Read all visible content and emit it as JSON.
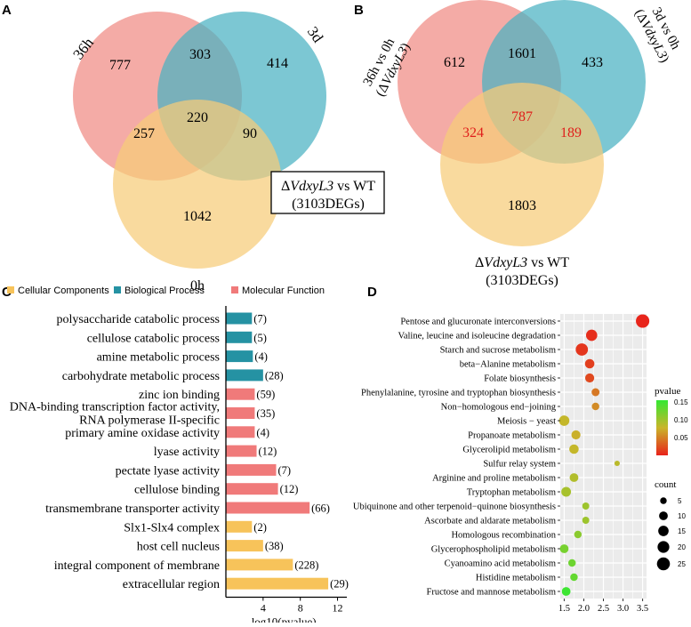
{
  "panelA": {
    "letter": "A",
    "set_labels": {
      "top_left": "36h",
      "top_right": "3d",
      "bottom": "0h"
    },
    "counts": {
      "only_36h": "777",
      "only_3d": "414",
      "only_0h": "1042",
      "h36_3d": "303",
      "h36_0h": "257",
      "d3_0h": "90",
      "all": "220"
    },
    "box_line1_delta": "Δ",
    "box_line1_gene": "VdxyL3",
    "box_line1_rest": " vs WT",
    "box_line2": "(3103DEGs)"
  },
  "panelB": {
    "letter": "B",
    "left_label_line1": "36h vs 0h",
    "left_label_line2_delta": "(Δ",
    "left_label_line2_gene": "VdxyL3",
    "left_label_line2_close": ")",
    "right_label_line1": "3d vs 0h",
    "right_label_line2_delta": "(Δ",
    "right_label_line2_gene": "VdxyL3",
    "right_label_line2_close": ")",
    "counts": {
      "only_left": "612",
      "only_right": "433",
      "only_bottom": "1803",
      "left_right": "1601",
      "left_bottom": "324",
      "right_bottom": "189",
      "all": "787"
    },
    "bottom_label_line1_delta": "Δ",
    "bottom_label_line1_gene": "VdxyL3",
    "bottom_label_line1_rest": " vs WT",
    "bottom_label_line2": "(3103DEGs)"
  },
  "colors": {
    "pink": "#F08A84",
    "teal": "#4AB2C2",
    "yellow": "#F7CC78",
    "red_text": "#E0201C",
    "bar_cc": "#F7C35A",
    "bar_bp": "#2592A3",
    "bar_mf": "#F07A7A"
  },
  "chart_data": [
    {
      "type": "bar",
      "orientation": "horizontal",
      "panel": "C",
      "legend": [
        {
          "name": "Cellular Components",
          "color": "#F7C35A"
        },
        {
          "name": "Biological Process",
          "color": "#2592A3"
        },
        {
          "name": "Molecular Function",
          "color": "#F07A7A"
        }
      ],
      "categories": [
        {
          "label": [
            "polysaccharide catabolic process"
          ],
          "group": "bp",
          "value": 2.8,
          "count": "(7)"
        },
        {
          "label": [
            "cellulose catabolic process"
          ],
          "group": "bp",
          "value": 2.8,
          "count": "(5)"
        },
        {
          "label": [
            "amine metabolic process"
          ],
          "group": "bp",
          "value": 2.9,
          "count": "(4)"
        },
        {
          "label": [
            "carbohydrate metabolic process"
          ],
          "group": "bp",
          "value": 4.0,
          "count": "(28)"
        },
        {
          "label": [
            "zinc ion binding"
          ],
          "group": "mf",
          "value": 3.1,
          "count": "(59)"
        },
        {
          "label": [
            "DNA-binding transcription factor activity,",
            "RNA polymerase II-specific"
          ],
          "group": "mf",
          "value": 3.1,
          "count": "(35)"
        },
        {
          "label": [
            "primary amine oxidase activity"
          ],
          "group": "mf",
          "value": 3.1,
          "count": "(4)"
        },
        {
          "label": [
            "lyase activity"
          ],
          "group": "mf",
          "value": 3.3,
          "count": "(12)"
        },
        {
          "label": [
            "pectate lyase activity"
          ],
          "group": "mf",
          "value": 5.4,
          "count": "(7)"
        },
        {
          "label": [
            "cellulose binding"
          ],
          "group": "mf",
          "value": 5.6,
          "count": "(12)"
        },
        {
          "label": [
            "transmembrane transporter activity"
          ],
          "group": "mf",
          "value": 9.0,
          "count": "(66)"
        },
        {
          "label": [
            "Slx1-Slx4 complex"
          ],
          "group": "cc",
          "value": 2.8,
          "count": "(2)"
        },
        {
          "label": [
            "host cell nucleus"
          ],
          "group": "cc",
          "value": 4.0,
          "count": "(38)"
        },
        {
          "label": [
            "integral component of membrane"
          ],
          "group": "cc",
          "value": 7.2,
          "count": "(228)"
        },
        {
          "label": [
            "extracellular region"
          ],
          "group": "cc",
          "value": 11.0,
          "count": "(29)"
        }
      ],
      "xticks": [
        "4",
        "8",
        "12"
      ],
      "xtick_values": [
        4,
        8,
        12
      ],
      "xlim": [
        0,
        13
      ],
      "xlabel": "-log10(pvalue)"
    },
    {
      "type": "scatter",
      "panel": "D",
      "categories": [
        "Pentose and glucuronate interconversions",
        "Valine, leucine and isoleucine degradation",
        "Starch and sucrose metabolism",
        "beta−Alanine metabolism",
        "Folate biosynthesis",
        "Phenylalanine, tyrosine and tryptophan biosynthesis",
        "Non−homologous end−joining",
        "Meiosis − yeast",
        "Propanoate metabolism",
        "Glycerolipid metabolism",
        "Sulfur relay system",
        "Arginine and proline metabolism",
        "Tryptophan metabolism",
        "Ubiquinone and other terpenoid−quinone biosynthesis",
        "Ascorbate and aldarate metabolism",
        "Homologous recombination",
        "Glycerophospholipid metabolism",
        "Cyanoamino acid metabolism",
        "Histidine metabolism",
        "Fructose and mannose metabolism"
      ],
      "points": [
        {
          "x": 3.5,
          "count": 27,
          "pvalue": 0.001
        },
        {
          "x": 2.2,
          "count": 18,
          "pvalue": 0.006
        },
        {
          "x": 1.95,
          "count": 22,
          "pvalue": 0.01
        },
        {
          "x": 2.15,
          "count": 12,
          "pvalue": 0.015
        },
        {
          "x": 2.15,
          "count": 11,
          "pvalue": 0.02
        },
        {
          "x": 2.3,
          "count": 8,
          "pvalue": 0.045
        },
        {
          "x": 2.3,
          "count": 7,
          "pvalue": 0.055
        },
        {
          "x": 1.5,
          "count": 15,
          "pvalue": 0.08
        },
        {
          "x": 1.8,
          "count": 11,
          "pvalue": 0.075
        },
        {
          "x": 1.75,
          "count": 12,
          "pvalue": 0.08
        },
        {
          "x": 2.85,
          "count": 3,
          "pvalue": 0.085
        },
        {
          "x": 1.75,
          "count": 10,
          "pvalue": 0.09
        },
        {
          "x": 1.55,
          "count": 13,
          "pvalue": 0.095
        },
        {
          "x": 2.05,
          "count": 6,
          "pvalue": 0.1
        },
        {
          "x": 2.05,
          "count": 6,
          "pvalue": 0.1
        },
        {
          "x": 1.85,
          "count": 7,
          "pvalue": 0.11
        },
        {
          "x": 1.5,
          "count": 10,
          "pvalue": 0.12
        },
        {
          "x": 1.7,
          "count": 7,
          "pvalue": 0.125
        },
        {
          "x": 1.75,
          "count": 7,
          "pvalue": 0.13
        },
        {
          "x": 1.55,
          "count": 10,
          "pvalue": 0.15
        }
      ],
      "xticks": [
        "1.5",
        "2.0",
        "2.5",
        "3.0",
        "3.5"
      ],
      "xtick_values": [
        1.5,
        2.0,
        2.5,
        3.0,
        3.5
      ],
      "xlim": [
        1.4,
        3.6
      ],
      "color_legend": {
        "title": "pvalue",
        "ticks": [
          "0.15",
          "0.10",
          "0.05"
        ],
        "tick_values": [
          0.15,
          0.1,
          0.05
        ],
        "range": [
          0.0,
          0.155
        ],
        "low_color": "#E8231B",
        "mid_color": "#C9B52A",
        "high_color": "#33E833"
      },
      "size_legend": {
        "title": "count",
        "ticks": [
          "5",
          "10",
          "15",
          "20",
          "25"
        ],
        "tick_values": [
          5,
          10,
          15,
          20,
          25
        ]
      }
    }
  ],
  "panelC_letter": "C",
  "panelD_letter": "D"
}
